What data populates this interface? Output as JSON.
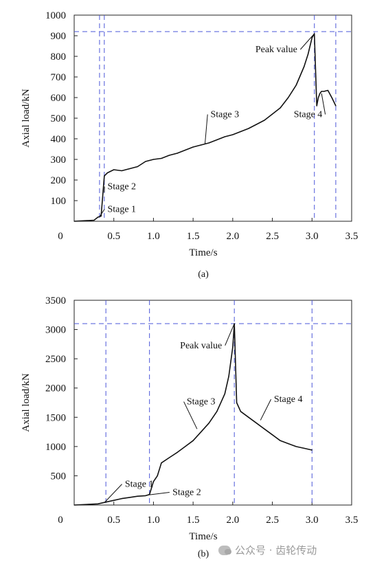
{
  "chart_data": [
    {
      "type": "line",
      "caption": "(a)",
      "xlabel": "Time/s",
      "ylabel": "Axial load/kN",
      "xlim": [
        0,
        3.5
      ],
      "ylim": [
        0,
        1000
      ],
      "xticks": [
        "0",
        "0.5",
        "1.0",
        "1.5",
        "2.0",
        "2.5",
        "3.0",
        "3.5"
      ],
      "yticks": [
        "100",
        "200",
        "300",
        "400",
        "500",
        "600",
        "700",
        "800",
        "900",
        "1000"
      ],
      "series": [
        {
          "x": [
            0.0,
            0.25,
            0.3,
            0.34,
            0.38,
            0.42,
            0.5,
            0.6,
            0.7,
            0.8,
            0.9,
            1.0,
            1.1,
            1.2,
            1.3,
            1.4,
            1.5,
            1.6,
            1.7,
            1.8,
            1.9,
            2.0,
            2.1,
            2.2,
            2.3,
            2.4,
            2.5,
            2.6,
            2.7,
            2.8,
            2.9,
            2.95,
            3.0,
            3.03,
            3.06,
            3.08,
            3.1,
            3.12,
            3.15,
            3.2,
            3.25,
            3.3
          ],
          "y": [
            0,
            5,
            20,
            25,
            220,
            235,
            250,
            245,
            255,
            265,
            290,
            300,
            305,
            320,
            330,
            345,
            360,
            370,
            380,
            395,
            410,
            420,
            435,
            450,
            470,
            490,
            520,
            550,
            600,
            660,
            750,
            810,
            890,
            910,
            560,
            600,
            620,
            630,
            630,
            635,
            600,
            560
          ]
        }
      ],
      "vlines": [
        0.32,
        0.38,
        3.03,
        3.3
      ],
      "hline": 920,
      "annotations": [
        {
          "text": "Stage 1",
          "x": 0.6,
          "y": 45,
          "ax": 0.32,
          "ay": 22
        },
        {
          "text": "Stage 2",
          "x": 0.6,
          "y": 155,
          "ax": 0.38,
          "ay": 140
        },
        {
          "text": "Stage 3",
          "x": 1.9,
          "y": 505,
          "ax": 1.65,
          "ay": 375
        },
        {
          "text": "Stage 4",
          "x": 2.95,
          "y": 505,
          "ax": 3.12,
          "ay": 620
        },
        {
          "text": "Peak value",
          "x": 2.55,
          "y": 820,
          "ax": 3.03,
          "ay": 910
        }
      ]
    },
    {
      "type": "line",
      "caption": "(b)",
      "xlabel": "Time/s",
      "ylabel": "Axial load/kN",
      "xlim": [
        0,
        3.5
      ],
      "ylim": [
        0,
        3500
      ],
      "xticks": [
        "0",
        "0.5",
        "1.0",
        "1.5",
        "2.0",
        "2.5",
        "3.0",
        "3.5"
      ],
      "yticks": [
        "500",
        "1000",
        "1500",
        "2000",
        "2500",
        "3000",
        "3500"
      ],
      "series": [
        {
          "x": [
            0.0,
            0.3,
            0.4,
            0.5,
            0.6,
            0.7,
            0.8,
            0.9,
            0.95,
            1.0,
            1.05,
            1.1,
            1.2,
            1.3,
            1.4,
            1.5,
            1.6,
            1.7,
            1.8,
            1.9,
            1.95,
            2.0,
            2.02,
            2.05,
            2.1,
            2.2,
            2.3,
            2.4,
            2.5,
            2.6,
            2.7,
            2.8,
            2.9,
            3.0
          ],
          "y": [
            0,
            20,
            50,
            80,
            110,
            130,
            150,
            160,
            180,
            400,
            500,
            720,
            810,
            900,
            1000,
            1100,
            1250,
            1400,
            1600,
            1900,
            2200,
            2700,
            3100,
            1750,
            1600,
            1500,
            1400,
            1300,
            1200,
            1100,
            1050,
            1000,
            970,
            940
          ]
        }
      ],
      "vlines": [
        0.4,
        0.95,
        2.02,
        3.0
      ],
      "hline": 3100,
      "annotations": [
        {
          "text": "Stage 1",
          "x": 0.82,
          "y": 310,
          "ax": 0.38,
          "ay": 40
        },
        {
          "text": "Stage 2",
          "x": 1.42,
          "y": 170,
          "ax": 0.95,
          "ay": 175
        },
        {
          "text": "Stage 3",
          "x": 1.6,
          "y": 1720,
          "ax": 1.55,
          "ay": 1300
        },
        {
          "text": "Stage 4",
          "x": 2.7,
          "y": 1760,
          "ax": 2.35,
          "ay": 1450
        },
        {
          "text": "Peak value",
          "x": 1.6,
          "y": 2680,
          "ax": 2.02,
          "ay": 3100
        }
      ]
    }
  ],
  "watermark": "公众号 · 齿轮传动"
}
